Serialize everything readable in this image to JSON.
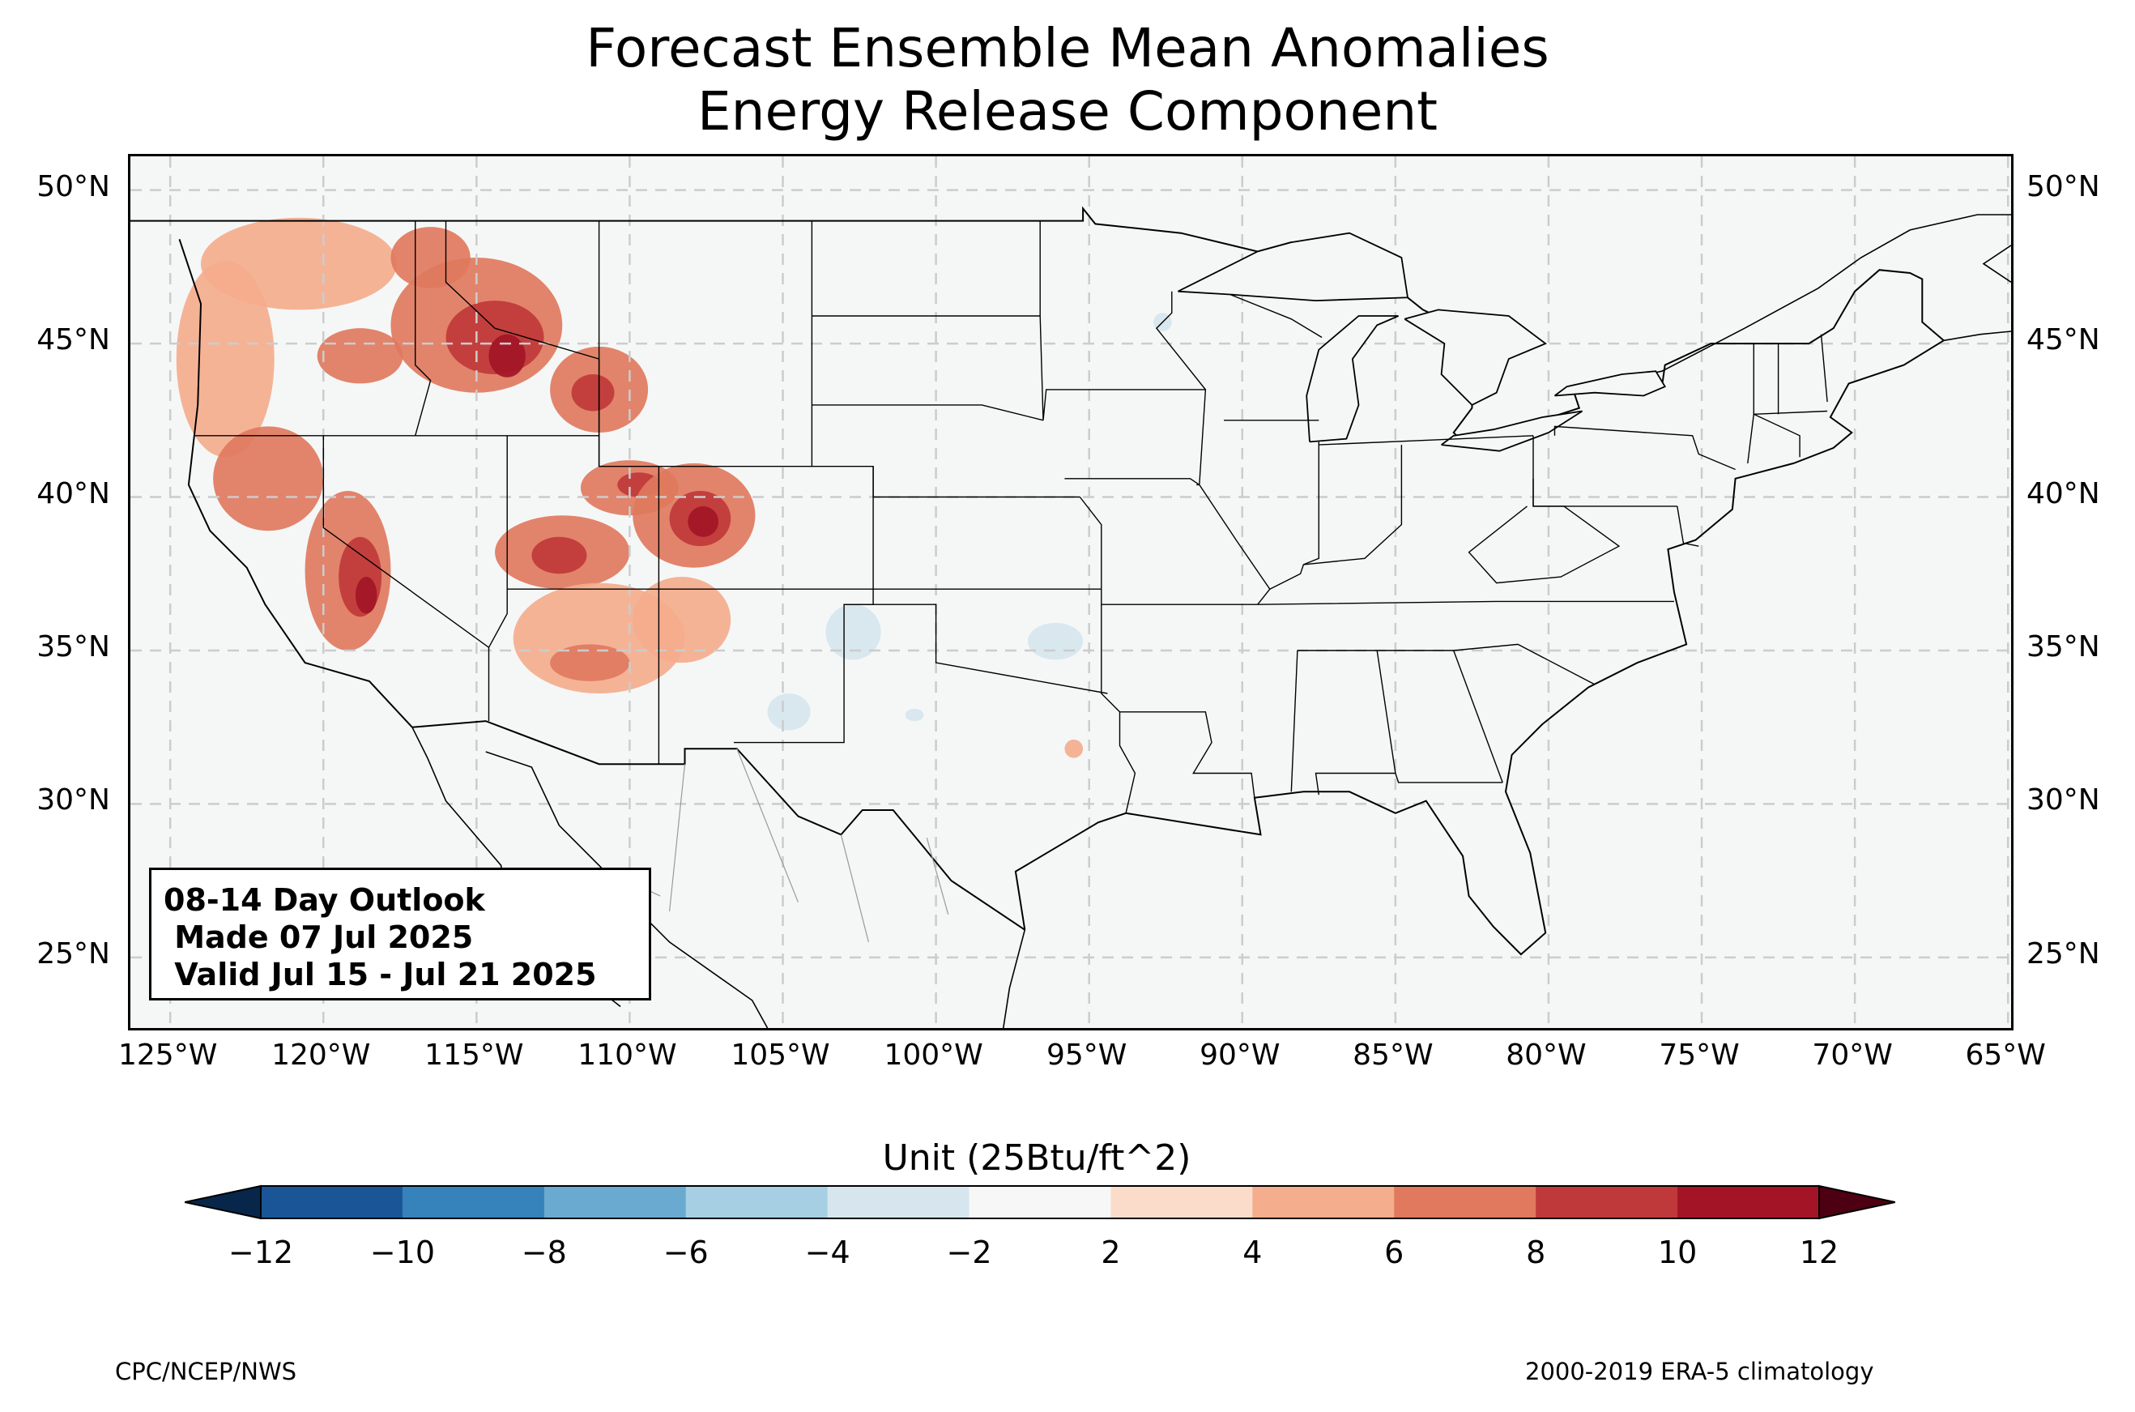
{
  "title": {
    "line1": "Forecast Ensemble Mean Anomalies",
    "line2": "Energy Release Component"
  },
  "map": {
    "lon_range": [
      -126.3,
      -64.9
    ],
    "lat_range": [
      22.7,
      51.1
    ],
    "ocean_color": "#f5f7f7",
    "land_color": "#f5f7f7",
    "border_color": "#000000",
    "county_color": "#999999",
    "grid_style": "dashed-light-gray",
    "lon_ticks": [
      {
        "lon": -125,
        "label": "125°W"
      },
      {
        "lon": -120,
        "label": "120°W"
      },
      {
        "lon": -115,
        "label": "115°W"
      },
      {
        "lon": -110,
        "label": "110°W"
      },
      {
        "lon": -105,
        "label": "105°W"
      },
      {
        "lon": -100,
        "label": "100°W"
      },
      {
        "lon": -95,
        "label": "95°W"
      },
      {
        "lon": -90,
        "label": "90°W"
      },
      {
        "lon": -85,
        "label": "85°W"
      },
      {
        "lon": -80,
        "label": "80°W"
      },
      {
        "lon": -75,
        "label": "75°W"
      },
      {
        "lon": -70,
        "label": "70°W"
      },
      {
        "lon": -65,
        "label": "65°W"
      }
    ],
    "lat_ticks": [
      {
        "lat": 50,
        "label": "50°N"
      },
      {
        "lat": 45,
        "label": "45°N"
      },
      {
        "lat": 40,
        "label": "40°N"
      },
      {
        "lat": 35,
        "label": "35°N"
      },
      {
        "lat": 30,
        "label": "30°N"
      },
      {
        "lat": 25,
        "label": "25°N"
      }
    ],
    "anomaly_areas": [
      {
        "name": "northwest-washington",
        "lon": -120.8,
        "lat": 47.6,
        "rx": 3.2,
        "ry": 1.5,
        "level": 4
      },
      {
        "name": "northern-idaho",
        "lon": -116.5,
        "lat": 47.8,
        "rx": 1.3,
        "ry": 1.0,
        "level": 6
      },
      {
        "name": "central-idaho",
        "lon": -115.0,
        "lat": 45.6,
        "rx": 2.8,
        "ry": 2.2,
        "level": 6
      },
      {
        "name": "idaho-montana-core",
        "lon": -114.4,
        "lat": 45.2,
        "rx": 1.6,
        "ry": 1.2,
        "level": 8
      },
      {
        "name": "idaho-montana-peak",
        "lon": -114.0,
        "lat": 44.6,
        "rx": 0.6,
        "ry": 0.7,
        "level": 10
      },
      {
        "name": "eastern-oregon",
        "lon": -118.8,
        "lat": 44.6,
        "rx": 1.4,
        "ry": 0.9,
        "level": 6
      },
      {
        "name": "western-wyoming",
        "lon": -111.0,
        "lat": 43.5,
        "rx": 1.6,
        "ry": 1.4,
        "level": 6
      },
      {
        "name": "wyoming-core",
        "lon": -111.2,
        "lat": 43.4,
        "rx": 0.7,
        "ry": 0.6,
        "level": 8
      },
      {
        "name": "oregon-coast",
        "lon": -123.2,
        "lat": 44.5,
        "rx": 1.6,
        "ry": 3.2,
        "level": 4
      },
      {
        "name": "northern-california",
        "lon": -121.8,
        "lat": 40.6,
        "rx": 1.8,
        "ry": 1.7,
        "level": 6
      },
      {
        "name": "sierra-nevada",
        "lon": -119.2,
        "lat": 37.6,
        "rx": 1.4,
        "ry": 2.6,
        "level": 6
      },
      {
        "name": "sierra-core",
        "lon": -118.8,
        "lat": 37.4,
        "rx": 0.7,
        "ry": 1.3,
        "level": 8
      },
      {
        "name": "sierra-peak",
        "lon": -118.6,
        "lat": 36.8,
        "rx": 0.35,
        "ry": 0.6,
        "level": 10
      },
      {
        "name": "southern-utah",
        "lon": -112.2,
        "lat": 38.2,
        "rx": 2.2,
        "ry": 1.2,
        "level": 6
      },
      {
        "name": "southern-utah-core",
        "lon": -112.3,
        "lat": 38.1,
        "rx": 0.9,
        "ry": 0.6,
        "level": 8
      },
      {
        "name": "northeast-utah",
        "lon": -110.0,
        "lat": 40.3,
        "rx": 1.6,
        "ry": 0.9,
        "level": 6
      },
      {
        "name": "utah-core",
        "lon": -109.7,
        "lat": 40.4,
        "rx": 0.7,
        "ry": 0.4,
        "level": 8
      },
      {
        "name": "western-colorado",
        "lon": -107.9,
        "lat": 39.4,
        "rx": 2.0,
        "ry": 1.7,
        "level": 6
      },
      {
        "name": "colorado-core",
        "lon": -107.7,
        "lat": 39.3,
        "rx": 1.0,
        "ry": 0.9,
        "level": 8
      },
      {
        "name": "colorado-peak",
        "lon": -107.6,
        "lat": 39.2,
        "rx": 0.5,
        "ry": 0.5,
        "level": 10
      },
      {
        "name": "northern-arizona",
        "lon": -111.0,
        "lat": 35.4,
        "rx": 2.8,
        "ry": 1.8,
        "level": 4
      },
      {
        "name": "central-arizona",
        "lon": -111.3,
        "lat": 34.6,
        "rx": 1.3,
        "ry": 0.6,
        "level": 6
      },
      {
        "name": "new-mexico-west",
        "lon": -108.3,
        "lat": 36.0,
        "rx": 1.6,
        "ry": 1.4,
        "level": 4
      },
      {
        "name": "southeast-texas",
        "lon": -95.5,
        "lat": 31.8,
        "rx": 0.3,
        "ry": 0.3,
        "level": 4
      }
    ],
    "negative_areas": [
      {
        "name": "southwest-kansas",
        "lon": -102.7,
        "lat": 35.6,
        "rx": 0.9,
        "ry": 0.9
      },
      {
        "name": "oklahoma-panhandle",
        "lon": -96.1,
        "lat": 35.3,
        "rx": 0.9,
        "ry": 0.6
      },
      {
        "name": "west-texas",
        "lon": -104.8,
        "lat": 33.0,
        "rx": 0.7,
        "ry": 0.6
      },
      {
        "name": "southern-minnesota",
        "lon": -92.6,
        "lat": 45.7,
        "rx": 0.3,
        "ry": 0.3
      },
      {
        "name": "north-texas",
        "lon": -100.7,
        "lat": 32.9,
        "rx": 0.3,
        "ry": 0.2
      }
    ]
  },
  "info_box": {
    "line1": "08-14 Day Outlook",
    "line2": " Made 07 Jul 2025",
    "line3": " Valid Jul 15 - Jul 21 2025"
  },
  "colorbar": {
    "label": "Unit (25Btu/ft^2)",
    "extend": "both",
    "ticks": [
      "−12",
      "−10",
      "−8",
      "−6",
      "−4",
      "−2",
      "2",
      "4",
      "6",
      "8",
      "10",
      "12"
    ],
    "under_color": "#08264a",
    "over_color": "#4d0012",
    "colors": [
      "#1a5697",
      "#3682bb",
      "#6aaad0",
      "#a7cfe3",
      "#d7e6ee",
      "#f7f7f7",
      "#fbdcca",
      "#f4ad8d",
      "#e0795e",
      "#c0393a",
      "#a31526"
    ]
  },
  "footer": {
    "left": "CPC/NCEP/NWS",
    "right": "2000-2019 ERA-5 climatology"
  }
}
